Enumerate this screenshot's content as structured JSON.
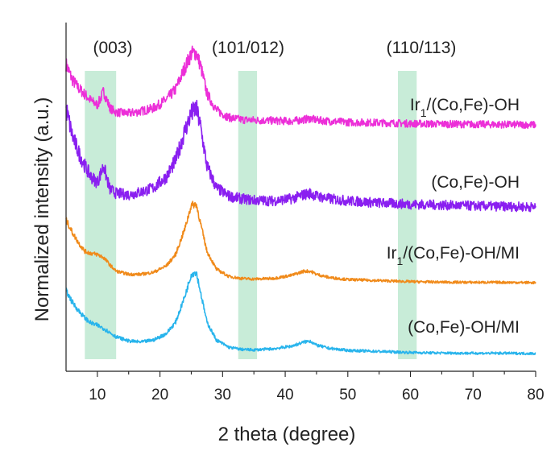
{
  "chart_data": {
    "type": "line",
    "title": "",
    "xlabel": "2 theta (degree)",
    "ylabel": "Normalized intensity (a.u.)",
    "xlim": [
      5,
      80
    ],
    "xticks": [
      10,
      20,
      30,
      40,
      50,
      60,
      70,
      80
    ],
    "yticks": "none",
    "grid": false,
    "highlight_bands": [
      {
        "label": "(003)",
        "x_start": 8,
        "x_end": 13,
        "color": "#c8ecd8"
      },
      {
        "label": "(101/012)",
        "x_start": 32.5,
        "x_end": 35.5,
        "color": "#c8ecd8"
      },
      {
        "label": "(110/113)",
        "x_start": 58,
        "x_end": 61,
        "color": "#c8ecd8"
      }
    ],
    "series": [
      {
        "name": "Ir1/(Co,Fe)-OH",
        "label_main": "Ir",
        "label_sub": "1",
        "label_rest": "/(Co,Fe)-OH",
        "color": "#ec2fd8",
        "x": [
          5,
          6,
          7,
          8,
          9,
          10,
          10.5,
          11,
          11.5,
          12,
          13,
          15,
          17,
          19,
          21,
          22.5,
          24,
          25,
          25.8,
          26.5,
          27.5,
          29,
          31,
          33,
          35,
          38,
          41,
          43,
          44,
          45,
          47,
          50,
          55,
          60,
          65,
          70,
          75,
          80
        ],
        "y": [
          0.58,
          0.43,
          0.35,
          0.29,
          0.23,
          0.19,
          0.25,
          0.32,
          0.24,
          0.16,
          0.12,
          0.11,
          0.13,
          0.16,
          0.24,
          0.34,
          0.55,
          0.68,
          0.69,
          0.56,
          0.3,
          0.14,
          0.07,
          0.05,
          0.045,
          0.04,
          0.035,
          0.05,
          0.06,
          0.045,
          0.035,
          0.025,
          0.02,
          0.012,
          0.008,
          0.005,
          0.003,
          0.0
        ]
      },
      {
        "name": "(Co,Fe)-OH",
        "label_main": "(Co,Fe)-OH",
        "label_sub": "",
        "label_rest": "",
        "color": "#8a1ff0",
        "x": [
          5,
          6,
          7,
          8,
          9,
          10,
          10.5,
          11,
          11.5,
          12,
          13,
          15,
          17,
          19,
          21,
          22.5,
          24,
          25,
          25.8,
          26.5,
          27.5,
          29,
          31,
          33,
          35,
          38,
          41,
          43,
          44,
          45,
          47,
          50,
          55,
          60,
          65,
          70,
          75,
          80
        ],
        "y": [
          0.72,
          0.52,
          0.4,
          0.3,
          0.22,
          0.18,
          0.24,
          0.3,
          0.21,
          0.13,
          0.1,
          0.09,
          0.11,
          0.14,
          0.22,
          0.34,
          0.56,
          0.68,
          0.72,
          0.58,
          0.3,
          0.14,
          0.08,
          0.06,
          0.05,
          0.045,
          0.06,
          0.09,
          0.1,
          0.08,
          0.06,
          0.045,
          0.03,
          0.02,
          0.014,
          0.008,
          0.004,
          0.0
        ]
      },
      {
        "name": "Ir1/(Co,Fe)-OH/MI",
        "label_main": "Ir",
        "label_sub": "1",
        "label_rest": "/(Co,Fe)-OH/MI",
        "color": "#f08a1a",
        "x": [
          5,
          6,
          7,
          8,
          9,
          10,
          11,
          12,
          13,
          15,
          17,
          19,
          21,
          22.5,
          24,
          25,
          25.8,
          26.5,
          27.5,
          29,
          31,
          33,
          35,
          38,
          41,
          43,
          44,
          45,
          47,
          50,
          55,
          60,
          65,
          70,
          75,
          80
        ],
        "y": [
          0.6,
          0.48,
          0.38,
          0.3,
          0.28,
          0.27,
          0.24,
          0.17,
          0.11,
          0.08,
          0.08,
          0.1,
          0.16,
          0.27,
          0.52,
          0.74,
          0.75,
          0.56,
          0.3,
          0.13,
          0.06,
          0.04,
          0.035,
          0.04,
          0.07,
          0.11,
          0.11,
          0.08,
          0.05,
          0.03,
          0.02,
          0.01,
          0.005,
          0.003,
          0.003,
          0.0
        ]
      },
      {
        "name": "(Co,Fe)-OH/MI",
        "label_main": "(Co,Fe)-OH/MI",
        "label_sub": "",
        "label_rest": "",
        "color": "#28b4ec",
        "x": [
          5,
          6,
          7,
          8,
          9,
          10,
          11,
          12,
          13,
          15,
          17,
          19,
          21,
          22.5,
          24,
          25,
          25.8,
          26.5,
          27.5,
          29,
          31,
          33,
          35,
          38,
          41,
          43,
          44,
          45,
          47,
          50,
          55,
          60,
          65,
          70,
          75,
          80
        ],
        "y": [
          0.6,
          0.49,
          0.41,
          0.34,
          0.29,
          0.27,
          0.24,
          0.2,
          0.16,
          0.12,
          0.11,
          0.13,
          0.19,
          0.3,
          0.55,
          0.76,
          0.78,
          0.58,
          0.3,
          0.13,
          0.06,
          0.04,
          0.035,
          0.045,
          0.07,
          0.11,
          0.12,
          0.08,
          0.05,
          0.03,
          0.02,
          0.01,
          0.005,
          0.003,
          0.003,
          0.0
        ]
      }
    ]
  }
}
